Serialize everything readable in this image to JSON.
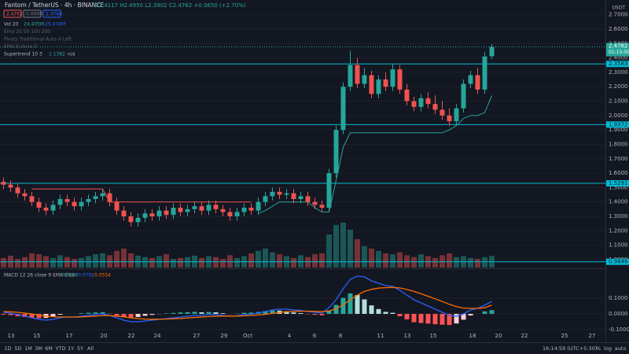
{
  "chart_data": [
    {
      "type": "candlestick",
      "title": "Fantom / TetherUS · 4h · BINANCE",
      "ohlc_text": "O2.4117 H2.4950 L2.3902 C2.4762 +0.0650 (+2.70%)",
      "quote_boxes": [
        "2.4762",
        "0.0000",
        "2.4764"
      ],
      "indicators": [
        "Vol 20",
        "Ema 20 50 100 200",
        "Pivots Traditional Auto 4 Left",
        "EMA 9 close 0",
        "Supertrend 10 3"
      ],
      "volume_legend": [
        "24.405M",
        "25.474M"
      ],
      "supertrend_na": "n/a",
      "unit": "USDT",
      "countdown": "01:15:00",
      "up_color": "#26a69a",
      "down_color": "#ef5350",
      "level_color": "#00bcd4",
      "open": [
        1.54,
        1.52,
        1.5,
        1.46,
        1.44,
        1.4,
        1.36,
        1.34,
        1.38,
        1.42,
        1.4,
        1.37,
        1.4,
        1.42,
        1.44,
        1.46,
        1.4,
        1.34,
        1.3,
        1.26,
        1.29,
        1.32,
        1.3,
        1.34,
        1.31,
        1.36,
        1.33,
        1.35,
        1.37,
        1.34,
        1.38,
        1.35,
        1.33,
        1.3,
        1.33,
        1.36,
        1.34,
        1.4,
        1.44,
        1.47,
        1.45,
        1.46,
        1.42,
        1.44,
        1.4,
        1.38,
        1.36,
        1.6,
        1.9,
        2.2,
        2.35,
        2.22,
        2.28,
        2.15,
        2.25,
        2.2,
        2.32,
        2.18,
        2.1,
        2.06,
        2.12,
        2.08,
        2.04,
        2.0,
        1.96,
        2.05,
        2.22,
        2.28,
        2.18,
        2.4117
      ],
      "high": [
        1.57,
        1.55,
        1.53,
        1.49,
        1.47,
        1.43,
        1.39,
        1.41,
        1.45,
        1.45,
        1.43,
        1.43,
        1.45,
        1.47,
        1.49,
        1.49,
        1.43,
        1.37,
        1.33,
        1.32,
        1.35,
        1.35,
        1.37,
        1.37,
        1.39,
        1.39,
        1.38,
        1.4,
        1.4,
        1.41,
        1.41,
        1.38,
        1.36,
        1.36,
        1.39,
        1.39,
        1.43,
        1.47,
        1.5,
        1.5,
        1.49,
        1.49,
        1.47,
        1.47,
        1.43,
        1.41,
        1.63,
        1.93,
        2.23,
        2.45,
        2.4,
        2.33,
        2.31,
        2.28,
        2.3,
        2.36,
        2.35,
        2.22,
        2.13,
        2.15,
        2.16,
        2.14,
        2.1,
        2.05,
        2.08,
        2.25,
        2.31,
        2.33,
        2.44,
        2.495
      ],
      "low": [
        1.49,
        1.47,
        1.43,
        1.41,
        1.37,
        1.33,
        1.31,
        1.31,
        1.35,
        1.37,
        1.34,
        1.34,
        1.37,
        1.39,
        1.41,
        1.37,
        1.31,
        1.27,
        1.23,
        1.23,
        1.26,
        1.27,
        1.27,
        1.28,
        1.28,
        1.3,
        1.3,
        1.32,
        1.31,
        1.31,
        1.32,
        1.3,
        1.27,
        1.27,
        1.3,
        1.31,
        1.31,
        1.37,
        1.41,
        1.42,
        1.42,
        1.39,
        1.39,
        1.37,
        1.35,
        1.33,
        1.33,
        1.57,
        1.87,
        2.17,
        2.19,
        2.19,
        2.12,
        2.12,
        2.17,
        2.17,
        2.15,
        2.07,
        2.03,
        2.03,
        2.05,
        2.01,
        1.97,
        1.93,
        1.93,
        2.02,
        2.19,
        2.15,
        2.15,
        2.3902
      ],
      "close": [
        1.52,
        1.5,
        1.46,
        1.44,
        1.4,
        1.36,
        1.34,
        1.38,
        1.42,
        1.4,
        1.37,
        1.4,
        1.42,
        1.44,
        1.46,
        1.4,
        1.34,
        1.3,
        1.26,
        1.29,
        1.32,
        1.3,
        1.34,
        1.31,
        1.36,
        1.33,
        1.35,
        1.37,
        1.34,
        1.38,
        1.35,
        1.33,
        1.3,
        1.33,
        1.36,
        1.34,
        1.4,
        1.44,
        1.47,
        1.45,
        1.46,
        1.42,
        1.44,
        1.4,
        1.38,
        1.36,
        1.6,
        1.9,
        2.2,
        2.35,
        2.22,
        2.28,
        2.15,
        2.25,
        2.2,
        2.32,
        2.18,
        2.1,
        2.06,
        2.12,
        2.08,
        2.04,
        2.0,
        1.96,
        2.05,
        2.22,
        2.28,
        2.18,
        2.41,
        2.4762
      ],
      "volume": [
        20,
        25,
        18,
        22,
        30,
        28,
        24,
        20,
        26,
        22,
        18,
        20,
        24,
        28,
        30,
        26,
        35,
        40,
        30,
        25,
        22,
        20,
        24,
        28,
        18,
        20,
        22,
        25,
        20,
        24,
        22,
        18,
        26,
        20,
        24,
        30,
        35,
        40,
        32,
        28,
        24,
        20,
        26,
        22,
        28,
        30,
        70,
        90,
        95,
        80,
        60,
        45,
        40,
        35,
        30,
        28,
        32,
        26,
        22,
        28,
        24,
        20,
        26,
        30,
        22,
        24,
        20,
        18,
        22,
        24.405
      ],
      "volume_lim": [
        0,
        100
      ],
      "supertrend_down": [
        null,
        null,
        null,
        null,
        1.49,
        1.49,
        1.49,
        1.49,
        1.49,
        1.49,
        1.49,
        1.49,
        1.49,
        1.49,
        1.49,
        1.4,
        1.4,
        1.4,
        1.4,
        1.4,
        1.4,
        1.4,
        1.4,
        1.4,
        1.4,
        1.4,
        1.4,
        1.4,
        1.4,
        1.4,
        1.4,
        1.4,
        1.4,
        1.4,
        1.4,
        1.4,
        null,
        null,
        null,
        null,
        null,
        null,
        null,
        null,
        null,
        null,
        null,
        null,
        null,
        null,
        null,
        null,
        null,
        null,
        null,
        null,
        null,
        null,
        null,
        null,
        null,
        null,
        null,
        null,
        null,
        null,
        null,
        null,
        null,
        null
      ],
      "supertrend_up": [
        null,
        null,
        null,
        null,
        null,
        null,
        null,
        null,
        null,
        null,
        null,
        null,
        null,
        null,
        null,
        null,
        null,
        null,
        null,
        null,
        null,
        null,
        null,
        null,
        null,
        null,
        null,
        null,
        null,
        null,
        null,
        null,
        null,
        null,
        null,
        null,
        1.32,
        1.34,
        1.37,
        1.4,
        1.4,
        1.4,
        1.4,
        1.4,
        1.36,
        1.33,
        1.33,
        1.55,
        1.78,
        1.88,
        1.88,
        1.88,
        1.88,
        1.88,
        1.88,
        1.88,
        1.88,
        1.88,
        1.88,
        1.88,
        1.88,
        1.88,
        1.88,
        1.9,
        1.93,
        1.98,
        2.0,
        2.0,
        2.02,
        2.1382
      ],
      "levels": [
        2.3583,
        1.9372,
        1.5291,
        0.9846
      ],
      "ylim": [
        0.945,
        2.802
      ],
      "yticks": [
        {
          "value": 1.0,
          "label": "1.0000"
        },
        {
          "value": 1.1,
          "label": "1.1000"
        },
        {
          "value": 1.2,
          "label": "1.2000"
        },
        {
          "value": 1.3,
          "label": "1.3000"
        },
        {
          "value": 1.4,
          "label": "1.4000"
        },
        {
          "value": 1.5,
          "label": "1.5000"
        },
        {
          "value": 1.6,
          "label": "1.6000"
        },
        {
          "value": 1.7,
          "label": "1.7000"
        },
        {
          "value": 1.8,
          "label": "1.8000"
        },
        {
          "value": 1.9,
          "label": "1.9000"
        },
        {
          "value": 2.0,
          "label": "2.0000"
        },
        {
          "value": 2.1,
          "label": "2.1000"
        },
        {
          "value": 2.2,
          "label": "2.2000"
        },
        {
          "value": 2.3,
          "label": "2.3000"
        },
        {
          "value": 2.4,
          "label": "2.4000"
        },
        {
          "value": 2.5,
          "label": "2.5000"
        },
        {
          "value": 2.6,
          "label": "2.6000"
        },
        {
          "value": 2.7,
          "label": "2.7000"
        }
      ],
      "x_labels": [
        "13",
        "15",
        "17",
        "20",
        "22",
        "24",
        "27",
        "29",
        "Oct",
        "4",
        "6",
        "8",
        "11",
        "13",
        "15",
        "18",
        "20",
        "22",
        "25",
        "27"
      ],
      "grid": true
    },
    {
      "type": "macd",
      "title": "MACD 12 26 close 9 EMA EMA",
      "series": [
        {
          "name": "Histogram",
          "color": "#26a69a",
          "values": [
            -0.005,
            -0.008,
            -0.015,
            -0.02,
            -0.025,
            -0.028,
            -0.026,
            -0.017,
            -0.005,
            0.0,
            0.0,
            0.004,
            0.007,
            0.009,
            0.011,
            0.001,
            -0.011,
            -0.021,
            -0.025,
            -0.02,
            -0.012,
            -0.006,
            -0.001,
            0.003,
            0.006,
            0.009,
            0.011,
            0.013,
            0.01,
            0.012,
            0.01,
            0.004,
            -0.001,
            0.002,
            0.007,
            0.008,
            0.012,
            0.018,
            0.022,
            0.021,
            0.017,
            0.009,
            0.005,
            -0.002,
            -0.006,
            -0.009,
            0.021,
            0.057,
            0.102,
            0.13,
            0.12,
            0.092,
            0.054,
            0.031,
            0.013,
            0.007,
            -0.015,
            -0.035,
            -0.053,
            -0.058,
            -0.062,
            -0.066,
            -0.069,
            -0.071,
            -0.061,
            -0.037,
            -0.01,
            0.0,
            0.016,
            0.0238
          ]
        },
        {
          "name": "MACD",
          "color": "#2962ff",
          "values": [
            0.01,
            0.005,
            -0.005,
            -0.015,
            -0.025,
            -0.035,
            -0.04,
            -0.035,
            -0.025,
            -0.02,
            -0.02,
            -0.015,
            -0.01,
            -0.005,
            0.0,
            -0.01,
            -0.025,
            -0.04,
            -0.05,
            -0.05,
            -0.045,
            -0.04,
            -0.035,
            -0.03,
            -0.025,
            -0.02,
            -0.015,
            -0.01,
            -0.01,
            -0.005,
            -0.005,
            -0.01,
            -0.015,
            -0.012,
            -0.005,
            -0.002,
            0.005,
            0.015,
            0.025,
            0.03,
            0.03,
            0.025,
            0.022,
            0.015,
            0.01,
            0.005,
            0.04,
            0.09,
            0.16,
            0.22,
            0.24,
            0.235,
            0.21,
            0.195,
            0.18,
            0.175,
            0.15,
            0.12,
            0.09,
            0.07,
            0.05,
            0.03,
            0.01,
            -0.01,
            -0.015,
            0.0,
            0.025,
            0.035,
            0.055,
            0.0792
          ]
        },
        {
          "name": "Signal",
          "color": "#ff6d00",
          "values": [
            0.015,
            0.013,
            0.01,
            0.005,
            0.0,
            -0.007,
            -0.014,
            -0.018,
            -0.02,
            -0.02,
            -0.02,
            -0.019,
            -0.017,
            -0.014,
            -0.011,
            -0.011,
            -0.014,
            -0.019,
            -0.025,
            -0.03,
            -0.033,
            -0.034,
            -0.034,
            -0.033,
            -0.031,
            -0.029,
            -0.026,
            -0.023,
            -0.02,
            -0.017,
            -0.015,
            -0.014,
            -0.014,
            -0.014,
            -0.012,
            -0.01,
            -0.007,
            -0.003,
            0.003,
            0.009,
            0.013,
            0.016,
            0.017,
            0.017,
            0.016,
            0.014,
            0.019,
            0.033,
            0.058,
            0.09,
            0.12,
            0.143,
            0.156,
            0.164,
            0.167,
            0.168,
            0.165,
            0.155,
            0.143,
            0.128,
            0.112,
            0.096,
            0.079,
            0.061,
            0.046,
            0.037,
            0.035,
            0.035,
            0.039,
            0.0554
          ]
        }
      ],
      "ylim": [
        -0.115,
        0.27
      ],
      "yticks": [
        {
          "value": -0.1,
          "label": "-0.1000"
        },
        {
          "value": 0,
          "label": "0.0000"
        },
        {
          "value": 0.1,
          "label": "0.1000"
        }
      ]
    },
    {
      "type": "toolbar",
      "ranges": [
        "1D",
        "5D",
        "1M",
        "3M",
        "6M",
        "YTD",
        "1Y",
        "5Y",
        "All"
      ],
      "clock": "16:14:59 (UTC+5:30)",
      "options": [
        "%",
        "log",
        "auto"
      ]
    }
  ]
}
